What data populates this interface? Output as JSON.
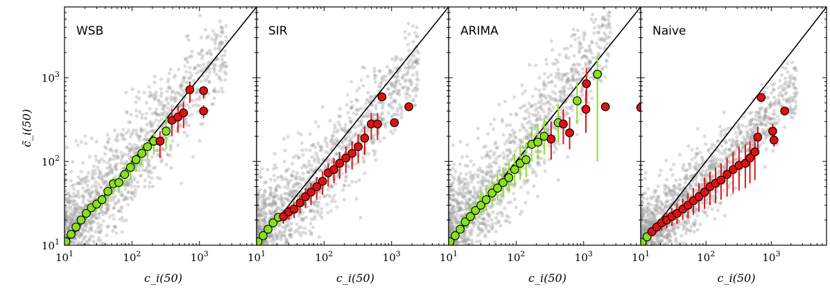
{
  "figure": {
    "xlabel": "c_i(50)",
    "ylabel": "c̃_i(50)",
    "x_ticks": [
      "10^1",
      "10^2",
      "10^3"
    ],
    "y_ticks": [
      "10^1",
      "10^2",
      "10^3"
    ],
    "colors": {
      "background_points": "#9a9a9a",
      "within_interval": "#88e01e",
      "outside_interval": "#e01010",
      "diagonal": "#000000"
    }
  },
  "chart_data": [
    {
      "type": "scatter",
      "title": "WSB",
      "xscale": "log",
      "yscale": "log",
      "xlim": [
        10,
        7000
      ],
      "ylim": [
        10,
        7000
      ],
      "background_cloud": {
        "spread": 0.3,
        "bias": 0.0
      },
      "points": [
        {
          "x": 10.5,
          "y": 11,
          "lo": 10.5,
          "hi": 11.5,
          "ok": true
        },
        {
          "x": 12.5,
          "y": 13.5,
          "lo": 12.5,
          "hi": 14.5,
          "ok": true
        },
        {
          "x": 14.8,
          "y": 16.5,
          "lo": 15,
          "hi": 18,
          "ok": true
        },
        {
          "x": 17.6,
          "y": 20,
          "lo": 17.5,
          "hi": 22,
          "ok": true
        },
        {
          "x": 21,
          "y": 24,
          "lo": 20,
          "hi": 27,
          "ok": true
        },
        {
          "x": 25,
          "y": 28,
          "lo": 23,
          "hi": 32,
          "ok": true
        },
        {
          "x": 30,
          "y": 31,
          "lo": 25,
          "hi": 37,
          "ok": true
        },
        {
          "x": 36,
          "y": 35,
          "lo": 28,
          "hi": 42,
          "ok": true
        },
        {
          "x": 44,
          "y": 44,
          "lo": 33,
          "hi": 52,
          "ok": true
        },
        {
          "x": 53,
          "y": 54,
          "lo": 40,
          "hi": 64,
          "ok": true
        },
        {
          "x": 64,
          "y": 56,
          "lo": 42,
          "hi": 70,
          "ok": true
        },
        {
          "x": 78,
          "y": 70,
          "lo": 52,
          "hi": 88,
          "ok": true
        },
        {
          "x": 95,
          "y": 85,
          "lo": 62,
          "hi": 105,
          "ok": true
        },
        {
          "x": 115,
          "y": 105,
          "lo": 75,
          "hi": 130,
          "ok": true
        },
        {
          "x": 140,
          "y": 125,
          "lo": 90,
          "hi": 160,
          "ok": true
        },
        {
          "x": 170,
          "y": 150,
          "lo": 105,
          "hi": 190,
          "ok": true
        },
        {
          "x": 210,
          "y": 175,
          "lo": 120,
          "hi": 230,
          "ok": true
        },
        {
          "x": 260,
          "y": 175,
          "lo": 110,
          "hi": 230,
          "ok": false
        },
        {
          "x": 320,
          "y": 230,
          "lo": 140,
          "hi": 340,
          "ok": true
        },
        {
          "x": 390,
          "y": 310,
          "lo": 200,
          "hi": 420,
          "ok": false
        },
        {
          "x": 480,
          "y": 340,
          "lo": 220,
          "hi": 460,
          "ok": false
        },
        {
          "x": 580,
          "y": 380,
          "lo": 250,
          "hi": 520,
          "ok": false
        },
        {
          "x": 720,
          "y": 720,
          "lo": 500,
          "hi": 900,
          "ok": false
        },
        {
          "x": 1150,
          "y": 700,
          "lo": 560,
          "hi": 760,
          "ok": false
        },
        {
          "x": 1150,
          "y": 400,
          "lo": 330,
          "hi": 470,
          "ok": false
        }
      ]
    },
    {
      "type": "scatter",
      "title": "SIR",
      "xscale": "log",
      "yscale": "log",
      "xlim": [
        10,
        7000
      ],
      "ylim": [
        10,
        7000
      ],
      "background_cloud": {
        "spread": 0.28,
        "bias": -0.15
      },
      "points": [
        {
          "x": 10.5,
          "y": 11,
          "lo": 10.5,
          "hi": 11.5,
          "ok": true
        },
        {
          "x": 12.5,
          "y": 13,
          "lo": 12,
          "hi": 14,
          "ok": true
        },
        {
          "x": 14.8,
          "y": 15.5,
          "lo": 14,
          "hi": 17,
          "ok": true
        },
        {
          "x": 17.6,
          "y": 18.5,
          "lo": 16,
          "hi": 20.5,
          "ok": true
        },
        {
          "x": 21,
          "y": 21.5,
          "lo": 18,
          "hi": 24,
          "ok": true
        },
        {
          "x": 25,
          "y": 22,
          "lo": 18,
          "hi": 26,
          "ok": false
        },
        {
          "x": 30,
          "y": 25,
          "lo": 20,
          "hi": 30,
          "ok": false
        },
        {
          "x": 36,
          "y": 27,
          "lo": 21,
          "hi": 33,
          "ok": false
        },
        {
          "x": 44,
          "y": 32,
          "lo": 24,
          "hi": 40,
          "ok": false
        },
        {
          "x": 53,
          "y": 38,
          "lo": 28,
          "hi": 48,
          "ok": false
        },
        {
          "x": 64,
          "y": 43,
          "lo": 30,
          "hi": 55,
          "ok": false
        },
        {
          "x": 78,
          "y": 50,
          "lo": 35,
          "hi": 65,
          "ok": false
        },
        {
          "x": 95,
          "y": 58,
          "lo": 40,
          "hi": 76,
          "ok": false
        },
        {
          "x": 115,
          "y": 73,
          "lo": 50,
          "hi": 95,
          "ok": false
        },
        {
          "x": 140,
          "y": 80,
          "lo": 55,
          "hi": 110,
          "ok": false
        },
        {
          "x": 170,
          "y": 95,
          "lo": 62,
          "hi": 130,
          "ok": false
        },
        {
          "x": 210,
          "y": 110,
          "lo": 72,
          "hi": 150,
          "ok": false
        },
        {
          "x": 260,
          "y": 125,
          "lo": 80,
          "hi": 175,
          "ok": false
        },
        {
          "x": 320,
          "y": 150,
          "lo": 95,
          "hi": 210,
          "ok": false
        },
        {
          "x": 400,
          "y": 190,
          "lo": 120,
          "hi": 260,
          "ok": false
        },
        {
          "x": 500,
          "y": 280,
          "lo": 180,
          "hi": 380,
          "ok": false
        },
        {
          "x": 620,
          "y": 280,
          "lo": 180,
          "hi": 380,
          "ok": false
        },
        {
          "x": 720,
          "y": 590,
          "lo": 560,
          "hi": 620,
          "ok": false
        },
        {
          "x": 1100,
          "y": 290,
          "lo": 270,
          "hi": 310,
          "ok": false
        },
        {
          "x": 1800,
          "y": 450,
          "lo": 430,
          "hi": 470,
          "ok": false
        }
      ]
    },
    {
      "type": "scatter",
      "title": "ARIMA",
      "xscale": "log",
      "yscale": "log",
      "xlim": [
        10,
        7000
      ],
      "ylim": [
        10,
        7000
      ],
      "background_cloud": {
        "spread": 0.32,
        "bias": 0.1
      },
      "points": [
        {
          "x": 10.5,
          "y": 11,
          "lo": 10.5,
          "hi": 11.5,
          "ok": true
        },
        {
          "x": 12.5,
          "y": 13,
          "lo": 12,
          "hi": 15,
          "ok": true
        },
        {
          "x": 14.8,
          "y": 15.5,
          "lo": 14,
          "hi": 19,
          "ok": true
        },
        {
          "x": 17.6,
          "y": 19,
          "lo": 16,
          "hi": 24,
          "ok": true
        },
        {
          "x": 21,
          "y": 22,
          "lo": 18,
          "hi": 30,
          "ok": true
        },
        {
          "x": 25,
          "y": 26,
          "lo": 20,
          "hi": 36,
          "ok": true
        },
        {
          "x": 30,
          "y": 30,
          "lo": 23,
          "hi": 44,
          "ok": true
        },
        {
          "x": 36,
          "y": 35,
          "lo": 26,
          "hi": 52,
          "ok": true
        },
        {
          "x": 44,
          "y": 42,
          "lo": 30,
          "hi": 62,
          "ok": true
        },
        {
          "x": 53,
          "y": 48,
          "lo": 34,
          "hi": 72,
          "ok": true
        },
        {
          "x": 64,
          "y": 56,
          "lo": 38,
          "hi": 85,
          "ok": true
        },
        {
          "x": 78,
          "y": 64,
          "lo": 42,
          "hi": 100,
          "ok": true
        },
        {
          "x": 95,
          "y": 80,
          "lo": 52,
          "hi": 125,
          "ok": true
        },
        {
          "x": 115,
          "y": 95,
          "lo": 60,
          "hi": 150,
          "ok": true
        },
        {
          "x": 140,
          "y": 105,
          "lo": 65,
          "hi": 170,
          "ok": true
        },
        {
          "x": 170,
          "y": 160,
          "lo": 100,
          "hi": 260,
          "ok": true
        },
        {
          "x": 210,
          "y": 170,
          "lo": 105,
          "hi": 280,
          "ok": true
        },
        {
          "x": 260,
          "y": 200,
          "lo": 120,
          "hi": 330,
          "ok": true
        },
        {
          "x": 330,
          "y": 185,
          "lo": 105,
          "hi": 300,
          "ok": false
        },
        {
          "x": 420,
          "y": 290,
          "lo": 170,
          "hi": 480,
          "ok": true
        },
        {
          "x": 500,
          "y": 280,
          "lo": 160,
          "hi": 420,
          "ok": false
        },
        {
          "x": 620,
          "y": 220,
          "lo": 140,
          "hi": 340,
          "ok": false
        },
        {
          "x": 800,
          "y": 530,
          "lo": 280,
          "hi": 900,
          "ok": true
        },
        {
          "x": 1080,
          "y": 420,
          "lo": 220,
          "hi": 700,
          "ok": false
        },
        {
          "x": 1100,
          "y": 850,
          "lo": 500,
          "hi": 1300,
          "ok": false
        },
        {
          "x": 1600,
          "y": 1100,
          "lo": 100,
          "hi": 1800,
          "ok": true
        },
        {
          "x": 2100,
          "y": 450,
          "lo": 430,
          "hi": 470,
          "ok": false
        },
        {
          "x": 7000,
          "y": 440,
          "lo": 420,
          "hi": 460,
          "ok": false
        }
      ]
    },
    {
      "type": "scatter",
      "title": "Naive",
      "xscale": "log",
      "yscale": "log",
      "xlim": [
        10,
        7000
      ],
      "ylim": [
        10,
        7000
      ],
      "background_cloud": {
        "spread": 0.22,
        "bias": -0.35
      },
      "points": [
        {
          "x": 10.5,
          "y": 10.8,
          "lo": 10.5,
          "hi": 11.2,
          "ok": true
        },
        {
          "x": 12.5,
          "y": 12.6,
          "lo": 12,
          "hi": 13.5,
          "ok": true
        },
        {
          "x": 14.8,
          "y": 14.5,
          "lo": 13,
          "hi": 16.5,
          "ok": false
        },
        {
          "x": 17.6,
          "y": 16.5,
          "lo": 14,
          "hi": 19,
          "ok": false
        },
        {
          "x": 21,
          "y": 18.5,
          "lo": 15,
          "hi": 22,
          "ok": false
        },
        {
          "x": 25,
          "y": 20,
          "lo": 16,
          "hi": 25,
          "ok": false
        },
        {
          "x": 30,
          "y": 22,
          "lo": 17,
          "hi": 28,
          "ok": false
        },
        {
          "x": 36,
          "y": 24,
          "lo": 18,
          "hi": 31,
          "ok": false
        },
        {
          "x": 44,
          "y": 27,
          "lo": 20,
          "hi": 36,
          "ok": false
        },
        {
          "x": 53,
          "y": 30,
          "lo": 21,
          "hi": 42,
          "ok": false
        },
        {
          "x": 64,
          "y": 34,
          "lo": 23,
          "hi": 48,
          "ok": false
        },
        {
          "x": 78,
          "y": 38,
          "lo": 25,
          "hi": 55,
          "ok": false
        },
        {
          "x": 95,
          "y": 43,
          "lo": 27,
          "hi": 64,
          "ok": false
        },
        {
          "x": 115,
          "y": 50,
          "lo": 30,
          "hi": 75,
          "ok": false
        },
        {
          "x": 140,
          "y": 55,
          "lo": 32,
          "hi": 85,
          "ok": false
        },
        {
          "x": 170,
          "y": 60,
          "lo": 35,
          "hi": 95,
          "ok": false
        },
        {
          "x": 210,
          "y": 70,
          "lo": 38,
          "hi": 110,
          "ok": false
        },
        {
          "x": 260,
          "y": 80,
          "lo": 42,
          "hi": 130,
          "ok": false
        },
        {
          "x": 320,
          "y": 90,
          "lo": 45,
          "hi": 150,
          "ok": false
        },
        {
          "x": 400,
          "y": 95,
          "lo": 48,
          "hi": 160,
          "ok": false
        },
        {
          "x": 470,
          "y": 110,
          "lo": 55,
          "hi": 175,
          "ok": false
        },
        {
          "x": 560,
          "y": 130,
          "lo": 60,
          "hi": 200,
          "ok": false
        },
        {
          "x": 620,
          "y": 195,
          "lo": 120,
          "hi": 260,
          "ok": false
        },
        {
          "x": 700,
          "y": 580,
          "lo": 560,
          "hi": 600,
          "ok": false
        },
        {
          "x": 1050,
          "y": 230,
          "lo": 180,
          "hi": 280,
          "ok": false
        },
        {
          "x": 1100,
          "y": 180,
          "lo": 150,
          "hi": 210,
          "ok": false
        },
        {
          "x": 1600,
          "y": 400,
          "lo": 380,
          "hi": 420,
          "ok": false
        }
      ]
    }
  ]
}
